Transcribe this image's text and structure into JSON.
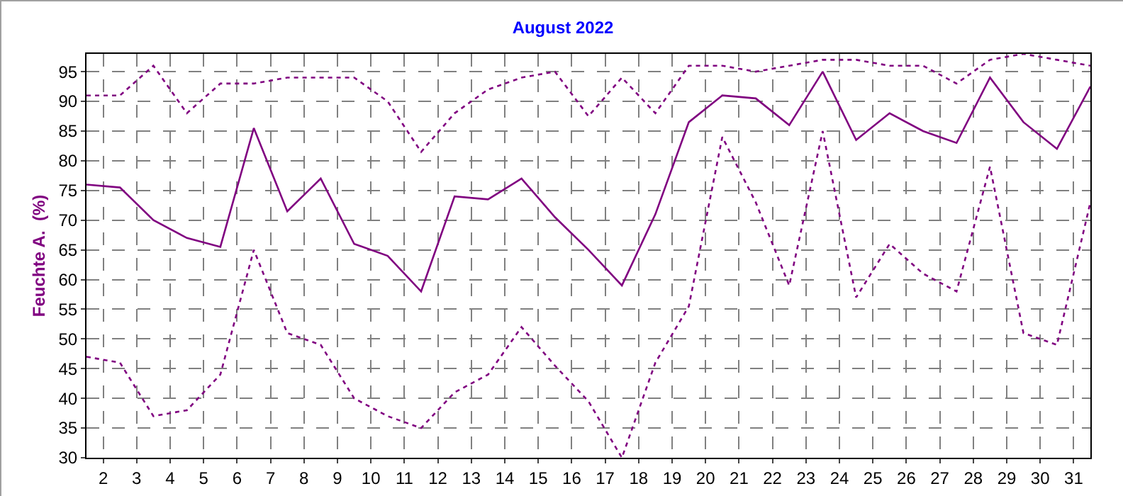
{
  "chart_data": {
    "type": "line",
    "title": "August 2022",
    "ylabel": "Feuchte A.  (%)",
    "x": [
      1.5,
      2.5,
      3.5,
      4.5,
      5.5,
      6.5,
      7.5,
      8.5,
      9.5,
      10.5,
      11.5,
      12.5,
      13.5,
      14.5,
      15.5,
      16.5,
      17.5,
      18.5,
      19.5,
      20.5,
      21.5,
      22.5,
      23.5,
      24.5,
      25.5,
      26.5,
      27.5,
      28.5,
      29.5,
      30.5,
      31.5
    ],
    "series": [
      {
        "color": "#800080",
        "line_style": "dotted",
        "values": [
          91,
          91,
          96,
          88,
          93,
          93,
          94,
          94,
          94,
          90,
          81.5,
          88,
          92,
          94,
          95,
          87.5,
          94,
          88,
          96,
          96,
          95,
          96,
          97,
          97,
          96,
          96,
          93,
          97,
          98,
          97,
          96
        ]
      },
      {
        "color": "#800080",
        "line_style": "solid",
        "values": [
          76,
          75.5,
          70,
          67,
          65.5,
          85.5,
          71.5,
          77,
          66,
          64,
          58,
          74,
          73.5,
          77,
          70.5,
          65,
          59,
          71,
          86.5,
          91,
          90.5,
          86,
          95,
          83.5,
          88,
          85,
          83,
          94,
          86.5,
          82,
          92.5
        ]
      },
      {
        "color": "#800080",
        "line_style": "dotted",
        "values": [
          47,
          46,
          37,
          38,
          44,
          65,
          51,
          49,
          40,
          37,
          35,
          41,
          44,
          52,
          45.5,
          39.5,
          30,
          46,
          55.5,
          84,
          73,
          59,
          85,
          57,
          66,
          61,
          58,
          79,
          51,
          49,
          73
        ]
      }
    ],
    "xlim": [
      1.5,
      31.5
    ],
    "xticks": [
      2,
      3,
      4,
      5,
      6,
      7,
      8,
      9,
      10,
      11,
      12,
      13,
      14,
      15,
      16,
      17,
      18,
      19,
      20,
      21,
      22,
      23,
      24,
      25,
      26,
      27,
      28,
      29,
      30,
      31
    ],
    "ylim": [
      30,
      98
    ],
    "yticks": [
      30,
      35,
      40,
      45,
      50,
      55,
      60,
      65,
      70,
      75,
      80,
      85,
      90,
      95
    ],
    "grid": true,
    "marker": "none"
  }
}
